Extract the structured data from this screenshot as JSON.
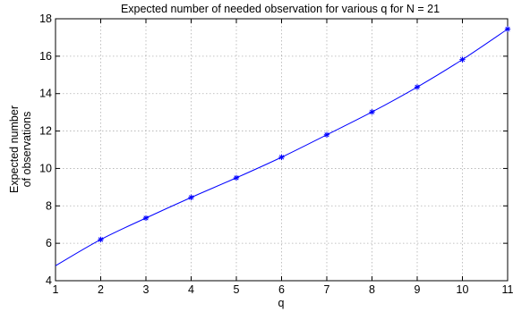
{
  "chart_data": {
    "type": "line",
    "title": "Expected number of needed observation for various q for N = 21",
    "xlabel": "q",
    "ylabel_lines": [
      "Expected number",
      "of observations"
    ],
    "xlim": [
      1,
      11
    ],
    "ylim": [
      4,
      18
    ],
    "xticks": [
      1,
      2,
      3,
      4,
      5,
      6,
      7,
      8,
      9,
      10,
      11
    ],
    "yticks": [
      4,
      6,
      8,
      10,
      12,
      14,
      16,
      18
    ],
    "grid": true,
    "series": [
      {
        "color": "#0000ff",
        "marker": "asterisk",
        "x": [
          1,
          2,
          3,
          4,
          5,
          6,
          7,
          8,
          9,
          10,
          11
        ],
        "y": [
          4.8,
          6.2,
          7.35,
          8.45,
          9.5,
          10.6,
          11.8,
          13.02,
          14.35,
          15.82,
          17.45
        ]
      }
    ]
  }
}
